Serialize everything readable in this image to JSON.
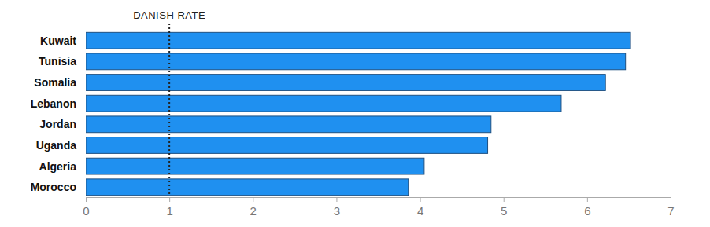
{
  "chart_data": {
    "type": "bar",
    "orientation": "horizontal",
    "categories": [
      "Kuwait",
      "Tunisia",
      "Somalia",
      "Lebanon",
      "Jordan",
      "Uganda",
      "Algeria",
      "Morocco"
    ],
    "values": [
      6.52,
      6.46,
      6.22,
      5.69,
      4.85,
      4.81,
      4.05,
      3.86
    ],
    "color": "#1f90f0",
    "xlim": [
      0,
      7
    ],
    "xticks": [
      0,
      1,
      2,
      3,
      4,
      5,
      6,
      7
    ],
    "grid": false,
    "reference_line": {
      "label": "DANISH RATE",
      "value": 1
    }
  }
}
